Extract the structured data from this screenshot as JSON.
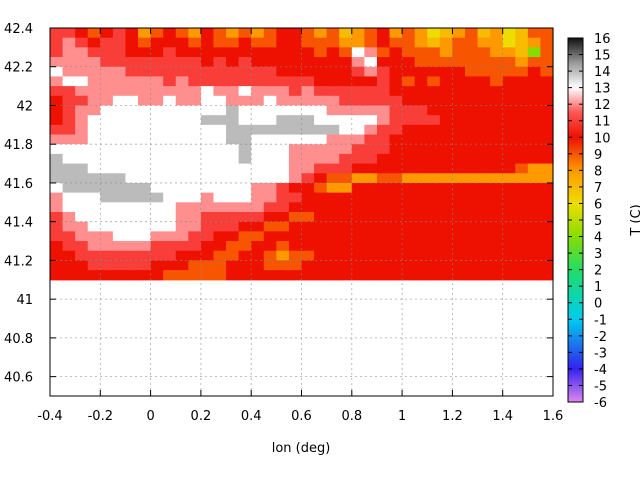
{
  "chart_data": {
    "type": "heatmap",
    "title": "",
    "xlabel": "lon (deg)",
    "ylabel": "",
    "colorbar_label": "T (C)",
    "xlim": [
      -0.4,
      1.6
    ],
    "ylim": [
      40.5,
      42.4
    ],
    "x_ticks": [
      -0.4,
      -0.2,
      0,
      0.2,
      0.4,
      0.6,
      0.8,
      1,
      1.2,
      1.4,
      1.6
    ],
    "x_tick_labels": [
      "-0.4",
      "-0.2",
      "0",
      "0.2",
      "0.4",
      "0.6",
      "0.8",
      "1",
      "1.2",
      "1.4",
      "1.6"
    ],
    "y_ticks": [
      40.6,
      40.8,
      41,
      41.2,
      41.4,
      41.6,
      41.8,
      42,
      42.2,
      42.4
    ],
    "y_tick_labels": [
      "40.6",
      "40.8",
      "41",
      "41.2",
      "41.4",
      "41.6",
      "41.8",
      "42",
      "42.2",
      "42.4"
    ],
    "colorbar_range": [
      -6,
      16
    ],
    "colorbar_ticks": [
      16,
      15,
      14,
      13,
      12,
      11,
      10,
      9,
      8,
      7,
      6,
      5,
      4,
      3,
      2,
      1,
      0,
      -1,
      -2,
      -3,
      -4,
      -5,
      -6
    ],
    "colorbar_tick_labels": [
      "16",
      "15",
      "14",
      "13",
      "12",
      "11",
      "10",
      "9",
      "8",
      "7",
      "6",
      "5",
      "4",
      "3",
      "2",
      "1",
      "0",
      "-1",
      "-2",
      "-3",
      "-4",
      "-5",
      "-6"
    ],
    "colormap": [
      {
        "t": -6,
        "color": "#dd88ee"
      },
      {
        "t": -4,
        "color": "#3322ee"
      },
      {
        "t": -1,
        "color": "#00ccee"
      },
      {
        "t": 2,
        "color": "#22dd66"
      },
      {
        "t": 4,
        "color": "#88dd00"
      },
      {
        "t": 6,
        "color": "#eedd00"
      },
      {
        "t": 8,
        "color": "#ff9900"
      },
      {
        "t": 10,
        "color": "#ee1100"
      },
      {
        "t": 11.5,
        "color": "#ff5555"
      },
      {
        "t": 13,
        "color": "#ffffff"
      },
      {
        "t": 14.5,
        "color": "#999999"
      },
      {
        "t": 16,
        "color": "#111111"
      }
    ],
    "grid": true,
    "grid_lon_step": 0.05,
    "grid_lat_step": 0.05,
    "field_rows_north_to_south": [
      [
        11,
        11,
        10,
        9,
        10,
        11,
        10,
        8,
        9,
        10,
        9,
        8,
        10,
        9,
        8,
        9,
        8,
        9,
        10,
        10,
        9,
        8,
        9,
        7,
        8,
        9,
        10,
        8,
        9,
        8,
        6,
        7,
        8,
        9,
        7,
        8,
        6,
        7,
        9,
        9
      ],
      [
        11,
        12,
        11,
        10,
        11,
        11,
        10,
        9,
        10,
        10,
        10,
        9,
        10,
        9,
        9,
        10,
        9,
        9,
        10,
        10,
        9,
        9,
        9,
        8,
        8,
        9,
        10,
        9,
        9,
        8,
        7,
        8,
        9,
        9,
        8,
        8,
        6,
        7,
        8,
        9
      ],
      [
        11,
        12,
        12,
        11,
        11,
        11,
        10,
        10,
        10,
        11,
        10,
        10,
        10,
        10,
        10,
        10,
        10,
        10,
        10,
        10,
        10,
        9,
        10,
        9,
        13,
        12,
        9,
        10,
        9,
        9,
        9,
        8,
        9,
        9,
        9,
        8,
        8,
        7,
        4,
        9
      ],
      [
        12,
        12,
        12,
        12,
        11,
        11,
        11,
        11,
        11,
        11,
        11,
        11,
        10,
        11,
        10,
        11,
        10,
        10,
        10,
        10,
        10,
        10,
        10,
        10,
        12,
        13,
        10,
        10,
        10,
        9,
        9,
        9,
        9,
        9,
        9,
        9,
        9,
        8,
        9,
        9
      ],
      [
        13,
        12,
        12,
        12,
        12,
        12,
        11,
        11,
        11,
        11,
        11,
        11,
        11,
        11,
        11,
        11,
        11,
        11,
        10,
        10,
        10,
        10,
        10,
        10,
        11,
        12,
        11,
        10,
        10,
        10,
        10,
        10,
        10,
        9,
        9,
        9,
        9,
        9,
        10,
        9
      ],
      [
        12,
        13,
        13,
        12,
        12,
        12,
        12,
        12,
        12,
        11,
        12,
        11,
        11,
        11,
        11,
        11,
        11,
        11,
        11,
        11,
        11,
        10,
        10,
        10,
        10,
        10,
        11,
        10,
        9,
        10,
        9,
        10,
        10,
        10,
        10,
        9,
        10,
        10,
        10,
        10
      ],
      [
        11,
        11,
        12,
        12,
        12,
        12,
        12,
        12,
        12,
        12,
        12,
        12,
        13,
        12,
        12,
        13,
        12,
        12,
        12,
        11,
        12,
        11,
        11,
        11,
        11,
        11,
        11,
        10,
        10,
        10,
        10,
        10,
        10,
        10,
        10,
        10,
        10,
        10,
        10,
        10
      ],
      [
        10,
        11,
        11,
        12,
        12,
        13,
        13,
        12,
        12,
        13,
        12,
        12,
        13,
        13,
        12,
        12,
        12,
        13,
        12,
        12,
        12,
        12,
        12,
        11,
        11,
        11,
        11,
        11,
        10,
        10,
        10,
        10,
        10,
        10,
        10,
        10,
        10,
        10,
        10,
        10
      ],
      [
        10,
        11,
        12,
        12,
        13,
        13,
        13,
        13,
        13,
        13,
        13,
        13,
        13,
        13,
        14,
        13,
        13,
        13,
        13,
        13,
        13,
        13,
        12,
        12,
        12,
        12,
        12,
        11,
        11,
        11,
        10,
        10,
        10,
        10,
        10,
        10,
        10,
        10,
        10,
        10
      ],
      [
        10,
        11,
        12,
        13,
        13,
        13,
        13,
        13,
        13,
        13,
        13,
        13,
        14,
        14,
        14,
        13,
        13,
        13,
        14,
        14,
        14,
        13,
        13,
        13,
        13,
        13,
        12,
        11,
        11,
        11,
        11,
        10,
        10,
        10,
        10,
        10,
        10,
        10,
        10,
        10
      ],
      [
        11,
        11,
        12,
        13,
        13,
        13,
        13,
        13,
        13,
        13,
        13,
        13,
        13,
        13,
        14,
        14,
        14,
        14,
        14,
        14,
        14,
        14,
        14,
        13,
        13,
        12,
        11,
        11,
        10,
        10,
        10,
        10,
        10,
        10,
        10,
        10,
        10,
        10,
        10,
        10
      ],
      [
        12,
        12,
        12,
        13,
        13,
        13,
        13,
        13,
        13,
        13,
        13,
        13,
        13,
        13,
        14,
        14,
        13,
        13,
        13,
        13,
        13,
        13,
        12,
        12,
        12,
        11,
        11,
        10,
        10,
        10,
        10,
        10,
        10,
        10,
        10,
        10,
        10,
        10,
        10,
        10
      ],
      [
        13,
        13,
        13,
        13,
        13,
        13,
        13,
        13,
        13,
        13,
        13,
        13,
        13,
        13,
        13,
        14,
        13,
        13,
        13,
        12,
        12,
        12,
        12,
        12,
        11,
        11,
        11,
        10,
        10,
        10,
        10,
        10,
        10,
        10,
        10,
        10,
        10,
        10,
        10,
        10
      ],
      [
        14,
        13,
        13,
        13,
        13,
        13,
        13,
        13,
        13,
        13,
        13,
        13,
        13,
        13,
        13,
        14,
        13,
        13,
        13,
        12,
        12,
        12,
        12,
        11,
        11,
        11,
        10,
        10,
        10,
        10,
        10,
        10,
        10,
        10,
        10,
        10,
        10,
        10,
        10,
        10
      ],
      [
        14,
        14,
        14,
        13,
        13,
        13,
        13,
        13,
        13,
        13,
        13,
        13,
        13,
        13,
        13,
        13,
        13,
        13,
        13,
        12,
        12,
        11,
        11,
        11,
        10,
        10,
        10,
        10,
        10,
        10,
        10,
        10,
        10,
        10,
        10,
        10,
        10,
        9,
        8,
        8
      ],
      [
        14,
        14,
        14,
        14,
        14,
        14,
        13,
        13,
        13,
        13,
        13,
        13,
        13,
        13,
        13,
        13,
        13,
        13,
        13,
        12,
        11,
        10,
        9,
        9,
        8,
        8,
        9,
        9,
        8,
        8,
        8,
        8,
        8,
        8,
        8,
        8,
        8,
        8,
        8,
        8
      ],
      [
        13,
        14,
        14,
        14,
        14,
        14,
        14,
        14,
        13,
        13,
        13,
        13,
        13,
        13,
        13,
        13,
        12,
        12,
        11,
        10,
        10,
        9,
        8,
        8,
        10,
        10,
        10,
        10,
        10,
        10,
        10,
        10,
        10,
        10,
        10,
        10,
        10,
        10,
        10,
        10
      ],
      [
        12,
        13,
        13,
        13,
        14,
        14,
        14,
        14,
        14,
        13,
        13,
        13,
        12,
        13,
        13,
        13,
        12,
        12,
        11,
        11,
        10,
        10,
        10,
        10,
        10,
        10,
        10,
        10,
        10,
        10,
        10,
        10,
        10,
        10,
        10,
        10,
        10,
        10,
        10,
        10
      ],
      [
        12,
        13,
        13,
        13,
        13,
        13,
        13,
        13,
        13,
        13,
        12,
        12,
        12,
        12,
        12,
        12,
        12,
        11,
        11,
        10,
        10,
        10,
        10,
        10,
        10,
        10,
        10,
        10,
        10,
        10,
        10,
        10,
        10,
        10,
        10,
        10,
        10,
        10,
        10,
        10
      ],
      [
        11,
        12,
        13,
        13,
        13,
        13,
        13,
        13,
        13,
        13,
        12,
        12,
        11,
        11,
        11,
        11,
        11,
        10,
        10,
        9,
        9,
        10,
        10,
        10,
        10,
        10,
        10,
        10,
        10,
        10,
        10,
        10,
        10,
        10,
        10,
        10,
        10,
        10,
        10,
        10
      ],
      [
        11,
        12,
        12,
        13,
        13,
        13,
        13,
        13,
        13,
        13,
        12,
        12,
        11,
        11,
        11,
        10,
        10,
        9,
        9,
        10,
        10,
        10,
        10,
        10,
        10,
        10,
        10,
        10,
        10,
        10,
        10,
        10,
        10,
        10,
        10,
        10,
        10,
        10,
        10,
        10
      ],
      [
        11,
        11,
        12,
        12,
        12,
        13,
        13,
        13,
        12,
        12,
        12,
        11,
        11,
        10,
        10,
        9,
        9,
        10,
        10,
        10,
        10,
        10,
        10,
        10,
        10,
        10,
        10,
        10,
        10,
        10,
        10,
        10,
        10,
        10,
        10,
        10,
        10,
        10,
        10,
        10
      ],
      [
        10,
        11,
        11,
        12,
        12,
        12,
        12,
        12,
        11,
        11,
        11,
        11,
        10,
        10,
        9,
        9,
        10,
        10,
        9,
        10,
        10,
        10,
        10,
        10,
        10,
        10,
        10,
        10,
        10,
        10,
        10,
        10,
        10,
        10,
        10,
        10,
        10,
        10,
        10,
        10
      ],
      [
        10,
        10,
        11,
        11,
        11,
        11,
        11,
        11,
        11,
        11,
        10,
        10,
        10,
        9,
        9,
        10,
        10,
        9,
        8,
        9,
        9,
        10,
        10,
        10,
        10,
        10,
        10,
        10,
        10,
        10,
        10,
        10,
        10,
        10,
        10,
        10,
        10,
        10,
        10,
        10
      ],
      [
        10,
        10,
        10,
        11,
        11,
        11,
        11,
        11,
        10,
        10,
        10,
        9,
        9,
        9,
        10,
        10,
        10,
        9,
        9,
        9,
        10,
        10,
        10,
        10,
        10,
        10,
        10,
        10,
        10,
        10,
        10,
        10,
        10,
        10,
        10,
        10,
        10,
        10,
        10,
        10
      ],
      [
        10,
        10,
        10,
        10,
        10,
        10,
        10,
        10,
        10,
        9,
        9,
        9,
        9,
        9,
        10,
        10,
        10,
        10,
        10,
        10,
        10,
        10,
        10,
        10,
        10,
        10,
        10,
        10,
        10,
        10,
        10,
        10,
        10,
        10,
        10,
        10,
        10,
        10,
        10,
        10
      ]
    ]
  }
}
